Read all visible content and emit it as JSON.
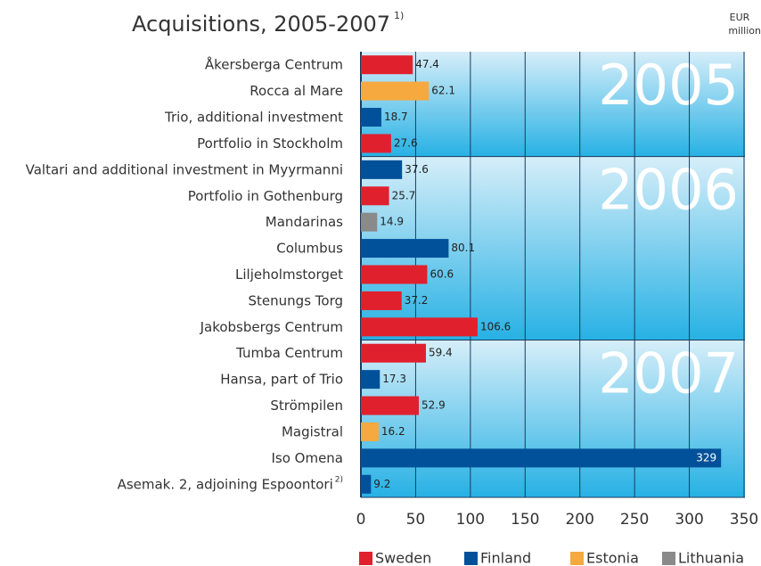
{
  "chart_data": {
    "type": "bar",
    "orientation": "horizontal",
    "title": "Acquisitions, 2005-2007",
    "title_note": "1)",
    "unit_label": [
      "EUR",
      "million"
    ],
    "categories": [
      "Åkersberga Centrum",
      "Rocca al Mare",
      "Trio, additional investment",
      "Portfolio in Stockholm",
      "Valtari and additional investment in Myyrmanni",
      "Portfolio in Gothenburg",
      "Mandarinas",
      "Columbus",
      "Liljeholmstorget",
      "Stenungs Torg",
      "Jakobsbergs Centrum",
      "Tumba Centrum",
      "Hansa, part of Trio",
      "Strömpilen",
      "Magistral",
      "Iso Omena",
      "Asemak. 2, adjoining Espoontori"
    ],
    "category_notes": [
      null,
      null,
      null,
      null,
      null,
      null,
      null,
      null,
      null,
      null,
      null,
      null,
      null,
      null,
      null,
      null,
      "2)"
    ],
    "groups": [
      {
        "label": "2005",
        "count": 4
      },
      {
        "label": "2006",
        "count": 7
      },
      {
        "label": "2007",
        "count": 6
      }
    ],
    "series": [
      {
        "name": "Sweden",
        "color": "#e1202e",
        "values": [
          47.4,
          null,
          null,
          27.6,
          null,
          25.7,
          null,
          null,
          60.6,
          37.2,
          106.6,
          59.4,
          null,
          52.9,
          null,
          null,
          null
        ]
      },
      {
        "name": "Finland",
        "color": "#00519a",
        "values": [
          null,
          null,
          18.7,
          null,
          37.6,
          null,
          null,
          80.1,
          null,
          null,
          null,
          null,
          17.3,
          null,
          null,
          329,
          9.2
        ]
      },
      {
        "name": "Estonia",
        "color": "#f6a93f",
        "values": [
          null,
          62.1,
          null,
          null,
          null,
          null,
          null,
          null,
          null,
          null,
          null,
          null,
          null,
          null,
          16.2,
          null,
          null
        ]
      },
      {
        "name": "Lithuania",
        "color": "#8a8a8a",
        "values": [
          null,
          null,
          null,
          null,
          null,
          null,
          14.9,
          null,
          null,
          null,
          null,
          null,
          null,
          null,
          null,
          null,
          null
        ]
      }
    ],
    "xlim": [
      0,
      350
    ],
    "xticks": [
      0,
      50,
      100,
      150,
      200,
      250,
      300,
      350
    ],
    "grid": true
  }
}
